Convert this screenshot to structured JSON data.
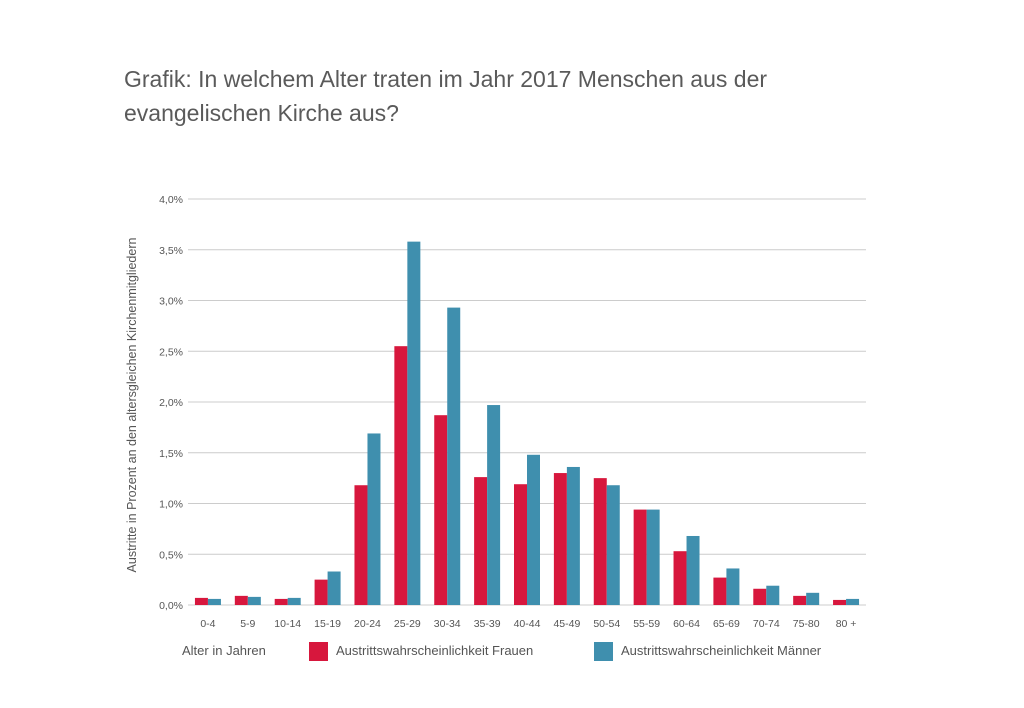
{
  "title": "Grafik: In welchem Alter traten im Jahr 2017 Menschen aus der evangelischen Kirche aus?",
  "colors": {
    "series_frauen": "#d7173d",
    "series_maenner": "#3f8fae",
    "grid": "#cccccc",
    "text": "#555555"
  },
  "chart_data": {
    "type": "bar",
    "title": "Grafik: In welchem Alter traten im Jahr 2017 Menschen aus der evangelischen Kirche aus?",
    "xlabel": "Alter in Jahren",
    "ylabel": "Austritte in Prozent an den altersgleichen Kirchenmitgliedern",
    "ylim": [
      0,
      4.0
    ],
    "yticks": [
      "0,0%",
      "0,5%",
      "1,0%",
      "1,5%",
      "2,0%",
      "2,5%",
      "3,0%",
      "3,5%",
      "4,0%"
    ],
    "grid": true,
    "legend_position": "bottom",
    "categories": [
      "0-4",
      "5-9",
      "10-14",
      "15-19",
      "20-24",
      "25-29",
      "30-34",
      "35-39",
      "40-44",
      "45-49",
      "50-54",
      "55-59",
      "60-64",
      "65-69",
      "70-74",
      "75-80",
      "80 +"
    ],
    "series": [
      {
        "name": "Austrittswahrscheinlichkeit Frauen",
        "values": [
          0.07,
          0.09,
          0.06,
          0.25,
          1.18,
          2.55,
          1.87,
          1.26,
          1.19,
          1.3,
          1.25,
          0.94,
          0.53,
          0.27,
          0.16,
          0.09,
          0.05
        ]
      },
      {
        "name": "Austrittswahrscheinlichkeit Männer",
        "values": [
          0.06,
          0.08,
          0.07,
          0.33,
          1.69,
          3.58,
          2.93,
          1.97,
          1.48,
          1.36,
          1.18,
          0.94,
          0.68,
          0.36,
          0.19,
          0.12,
          0.06
        ]
      }
    ]
  }
}
